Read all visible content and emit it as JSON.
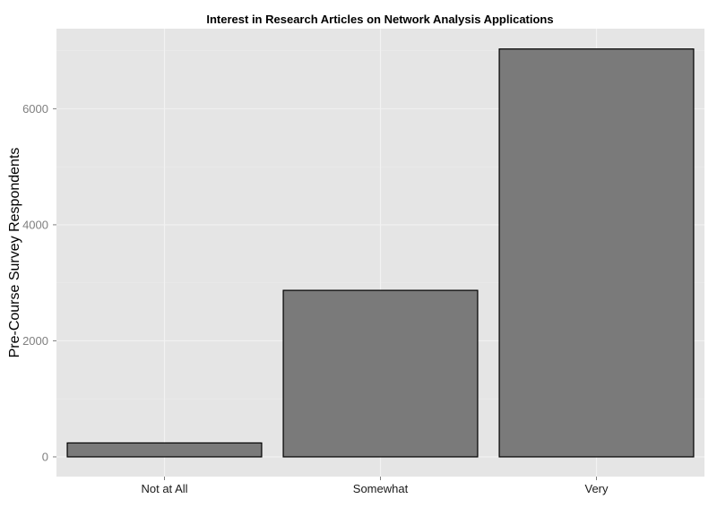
{
  "chart_data": {
    "type": "bar",
    "title": "Interest in Research Articles on Network Analysis Applications",
    "xlabel": "",
    "ylabel": "Pre-Course Survey Respondents",
    "categories": [
      "Not at All",
      "Somewhat",
      "Very"
    ],
    "values": [
      240,
      2870,
      7030
    ],
    "ylim": [
      -340,
      7380
    ],
    "yticks": [
      0,
      2000,
      4000,
      6000
    ],
    "ytick_labels": [
      "0",
      "2000",
      "4000",
      "6000"
    ],
    "grid": true,
    "legend": "none",
    "colors": {
      "panel_background": "#e5e5e5",
      "gridline_major": "#f2f2f2",
      "gridline_minor": "#ececec",
      "bar_fill": "#7a7a7a",
      "bar_stroke": "#000000"
    }
  }
}
